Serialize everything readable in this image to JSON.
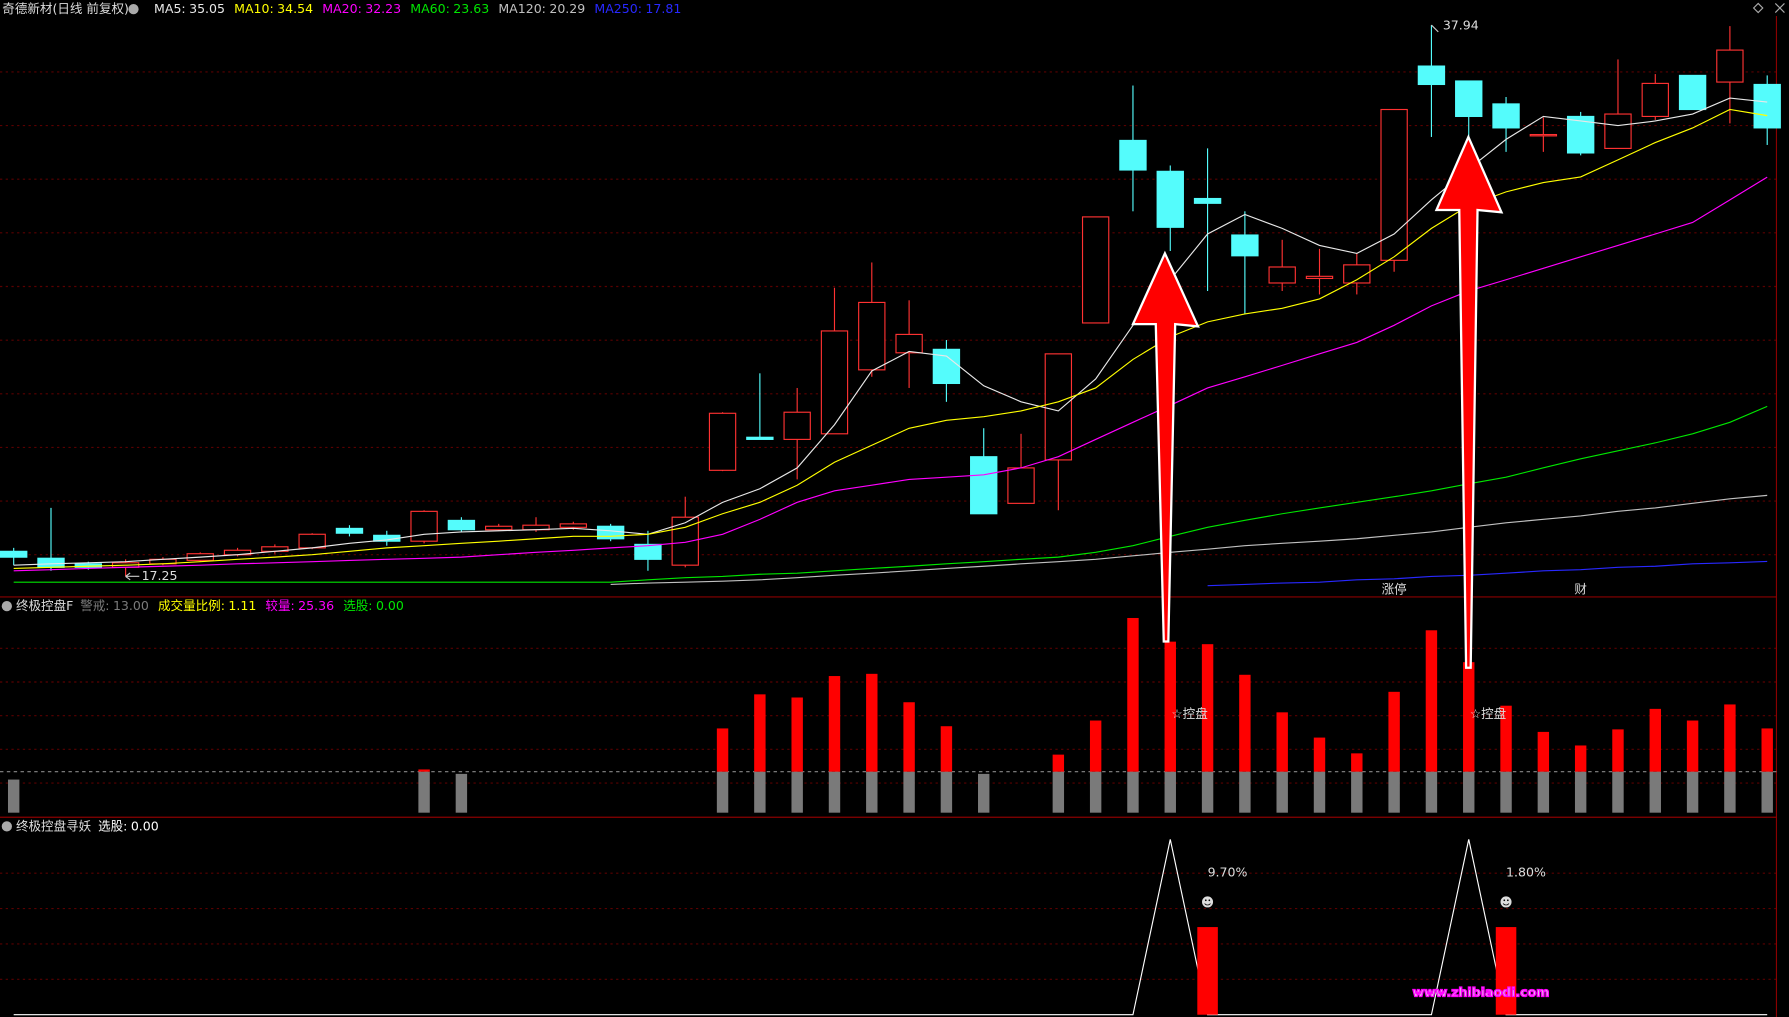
{
  "chart_data": [
    {
      "type": "candlestick",
      "title": "奇德新材(日线 前复权)",
      "open": [
        18.19,
        17.93,
        17.72,
        17.59,
        17.72,
        17.85,
        18.06,
        18.19,
        18.32,
        19.05,
        18.79,
        18.57,
        19.35,
        19.0,
        19.0,
        19.09,
        19.13,
        18.45,
        17.67,
        21.23,
        22.47,
        22.39,
        22.6,
        25.0,
        25.64,
        25.77,
        21.74,
        19.99,
        21.62,
        26.76,
        33.61,
        32.45,
        31.43,
        30.06,
        28.26,
        28.43,
        28.26,
        29.11,
        36.4,
        35.84,
        34.98,
        33.78,
        34.51,
        33.31,
        34.51,
        36.05,
        35.8,
        35.71
      ],
      "high": [
        18.32,
        19.82,
        17.8,
        17.89,
        17.97,
        18.15,
        18.32,
        18.45,
        18.87,
        19.17,
        18.96,
        19.73,
        19.47,
        19.22,
        19.47,
        19.3,
        19.22,
        18.96,
        20.24,
        23.41,
        24.87,
        24.32,
        28.08,
        29.03,
        27.61,
        26.12,
        22.81,
        22.6,
        25.6,
        30.74,
        35.67,
        32.67,
        33.31,
        30.95,
        29.88,
        29.54,
        29.37,
        34.77,
        37.94,
        35.84,
        35.24,
        34.47,
        34.68,
        36.65,
        36.1,
        36.05,
        37.9,
        36.05
      ],
      "low": [
        17.67,
        17.46,
        17.5,
        17.25,
        17.67,
        17.8,
        18.0,
        18.1,
        18.27,
        18.75,
        18.4,
        18.49,
        18.92,
        18.96,
        18.92,
        19.0,
        18.57,
        17.46,
        17.59,
        21.2,
        22.39,
        20.89,
        22.6,
        24.74,
        24.32,
        23.8,
        19.6,
        19.99,
        19.73,
        26.76,
        30.95,
        29.46,
        27.96,
        27.1,
        27.96,
        27.83,
        27.83,
        28.68,
        33.74,
        33.74,
        33.18,
        33.18,
        33.05,
        33.31,
        34.38,
        34.77,
        34.25,
        33.44
      ],
      "close": [
        17.97,
        17.59,
        17.59,
        17.76,
        17.89,
        18.1,
        18.23,
        18.36,
        18.83,
        18.87,
        18.57,
        19.69,
        19.0,
        19.13,
        19.17,
        19.22,
        18.66,
        17.89,
        19.47,
        23.37,
        22.39,
        23.41,
        26.46,
        27.53,
        26.33,
        24.49,
        19.6,
        21.32,
        25.6,
        30.74,
        32.5,
        30.35,
        31.25,
        29.28,
        28.86,
        28.51,
        28.94,
        34.77,
        35.71,
        34.51,
        34.08,
        33.83,
        33.14,
        34.6,
        35.75,
        34.77,
        37.0,
        34.08
      ],
      "up_color": "#ff3232",
      "down_color": "#54fcfc",
      "ylim": [
        16.52,
        38.28
      ],
      "series": [
        {
          "name": "MA5:",
          "color": "#e8e8e8",
          "values": [
            17.67,
            17.72,
            17.76,
            17.8,
            17.89,
            17.97,
            18.06,
            18.19,
            18.32,
            18.49,
            18.62,
            18.83,
            18.92,
            18.96,
            19.0,
            19.05,
            18.96,
            18.83,
            19.26,
            20.03,
            20.54,
            21.32,
            22.94,
            24.96,
            25.69,
            25.52,
            24.4,
            23.8,
            23.46,
            24.66,
            26.67,
            28.38,
            30.1,
            30.83,
            30.31,
            29.67,
            29.37,
            30.1,
            31.38,
            32.54,
            33.65,
            34.51,
            34.34,
            34.17,
            34.34,
            34.6,
            35.2,
            35.05
          ]
        },
        {
          "name": "MA10:",
          "color": "#ffff00",
          "values": [
            17.55,
            17.59,
            17.63,
            17.67,
            17.72,
            17.8,
            17.89,
            17.97,
            18.06,
            18.19,
            18.32,
            18.4,
            18.49,
            18.57,
            18.66,
            18.75,
            18.75,
            18.83,
            19.09,
            19.6,
            20.03,
            20.67,
            21.53,
            22.17,
            22.81,
            23.11,
            23.24,
            23.46,
            23.8,
            24.32,
            25.39,
            26.24,
            26.8,
            27.1,
            27.31,
            27.66,
            28.38,
            29.24,
            30.31,
            31.17,
            31.68,
            32.03,
            32.24,
            32.88,
            33.53,
            34.08,
            34.77,
            34.54
          ]
        },
        {
          "name": "MA20:",
          "color": "#ff00ff",
          "values": [
            17.46,
            17.5,
            17.55,
            17.59,
            17.63,
            17.67,
            17.72,
            17.76,
            17.8,
            17.85,
            17.89,
            17.93,
            17.97,
            18.06,
            18.15,
            18.23,
            18.32,
            18.4,
            18.53,
            18.83,
            19.39,
            20.03,
            20.46,
            20.67,
            20.89,
            20.97,
            21.06,
            21.32,
            21.74,
            22.39,
            23.03,
            23.67,
            24.32,
            24.74,
            25.17,
            25.6,
            26.03,
            26.67,
            27.4,
            27.96,
            28.38,
            28.81,
            29.24,
            29.67,
            30.1,
            30.53,
            31.38,
            32.23
          ]
        },
        {
          "name": "MA60:",
          "color": "#00e600",
          "values": [
            17.03,
            17.03,
            17.03,
            17.03,
            17.03,
            17.03,
            17.03,
            17.03,
            17.03,
            17.03,
            17.03,
            17.03,
            17.03,
            17.03,
            17.03,
            17.03,
            17.03,
            17.12,
            17.2,
            17.25,
            17.33,
            17.37,
            17.46,
            17.55,
            17.63,
            17.72,
            17.8,
            17.89,
            17.97,
            18.15,
            18.4,
            18.75,
            19.09,
            19.35,
            19.6,
            19.82,
            20.03,
            20.24,
            20.46,
            20.72,
            20.97,
            21.32,
            21.66,
            21.96,
            22.26,
            22.6,
            23.03,
            23.63
          ]
        },
        {
          "name": "MA120:",
          "color": "#c0c0c0",
          "values": [
            null,
            null,
            null,
            null,
            null,
            null,
            null,
            null,
            null,
            null,
            null,
            null,
            null,
            null,
            null,
            null,
            16.95,
            17.0,
            17.03,
            17.07,
            17.12,
            17.2,
            17.29,
            17.37,
            17.46,
            17.55,
            17.63,
            17.72,
            17.8,
            17.89,
            18.02,
            18.15,
            18.27,
            18.4,
            18.49,
            18.57,
            18.66,
            18.79,
            18.92,
            19.09,
            19.26,
            19.39,
            19.52,
            19.69,
            19.82,
            19.99,
            20.16,
            20.29
          ]
        },
        {
          "name": "MA250:",
          "color": "#2828ff",
          "values": [
            null,
            null,
            null,
            null,
            null,
            null,
            null,
            null,
            null,
            null,
            null,
            null,
            null,
            null,
            null,
            null,
            null,
            null,
            null,
            null,
            null,
            null,
            null,
            null,
            null,
            null,
            null,
            null,
            null,
            null,
            null,
            null,
            16.9,
            16.95,
            17.0,
            17.03,
            17.12,
            17.16,
            17.25,
            17.29,
            17.37,
            17.46,
            17.5,
            17.59,
            17.63,
            17.72,
            17.76,
            17.81
          ]
        }
      ],
      "annotations": [
        null,
        null,
        null,
        null,
        null,
        null,
        null,
        null,
        null,
        null,
        null,
        null,
        null,
        null,
        null,
        null,
        null,
        null,
        null,
        null,
        null,
        null,
        null,
        null,
        null,
        null,
        null,
        null,
        null,
        null,
        null,
        null,
        null,
        null,
        null,
        null,
        null,
        "涨停",
        null,
        null,
        null,
        null,
        "财",
        null,
        null,
        null,
        null,
        null
      ]
    },
    {
      "type": "bar",
      "title": "终极控盘F",
      "indicators": [
        {
          "name": "警戒:",
          "value": 13,
          "label": "13.00",
          "color": "#7a7a7a"
        },
        {
          "name": "成交量比例:",
          "value": 1.11,
          "color": "#ffff00"
        },
        {
          "name": "较量:",
          "value": 25.36,
          "color": "#ff00ff"
        },
        {
          "name": "选股:",
          "value": 0,
          "label": "0.00",
          "color": "#00e600"
        }
      ],
      "values": [
        10.5,
        null,
        null,
        null,
        null,
        null,
        null,
        null,
        null,
        null,
        null,
        13.7,
        12.3,
        null,
        null,
        null,
        null,
        null,
        null,
        26.7,
        37.5,
        36.5,
        43.3,
        44,
        35,
        27.4,
        12.3,
        null,
        18.4,
        29.2,
        61.7,
        54.2,
        53.4,
        43.7,
        31.8,
        23.8,
        18.8,
        38.3,
        57.8,
        47.7,
        33.9,
        25.6,
        21.3,
        26.4,
        32.9,
        29.2,
        34.3,
        26.7
      ],
      "colors": [
        "#7a7a7a",
        "#ff0000"
      ],
      "ylim": [
        0,
        68
      ],
      "signal_text": [
        null,
        null,
        null,
        null,
        null,
        null,
        null,
        null,
        null,
        null,
        null,
        null,
        null,
        null,
        null,
        null,
        null,
        null,
        null,
        null,
        null,
        null,
        null,
        null,
        null,
        null,
        null,
        null,
        null,
        null,
        null,
        "☆控盘",
        null,
        null,
        null,
        null,
        null,
        null,
        null,
        "☆控盘",
        null,
        null,
        null,
        null,
        null,
        null,
        null,
        null
      ]
    },
    {
      "type": "line",
      "title": "终极控盘寻妖",
      "indicators": [
        {
          "name": "选股:",
          "value": 0,
          "label": "0.00",
          "color": "#ffffff"
        }
      ],
      "values": [
        0,
        0,
        0,
        0,
        0,
        0,
        0,
        0,
        0,
        0,
        0,
        0,
        0,
        0,
        0,
        0,
        0,
        0,
        0,
        0,
        0,
        0,
        0,
        0,
        0,
        0,
        0,
        0,
        0,
        0,
        0,
        1,
        0,
        0,
        0,
        0,
        0,
        0,
        0,
        1,
        0,
        0,
        0,
        0,
        0,
        0,
        0,
        0
      ],
      "color": "#ffffff",
      "bars": [
        null,
        null,
        null,
        null,
        null,
        null,
        null,
        null,
        null,
        null,
        null,
        null,
        null,
        null,
        null,
        null,
        null,
        null,
        null,
        null,
        null,
        null,
        null,
        null,
        null,
        null,
        null,
        null,
        null,
        null,
        null,
        null,
        0.5,
        null,
        null,
        null,
        null,
        null,
        null,
        null,
        0.5,
        null,
        null,
        null,
        null,
        null,
        null,
        null
      ],
      "bar_color": "#ff0000",
      "pct_labels": [
        null,
        null,
        null,
        null,
        null,
        null,
        null,
        null,
        null,
        null,
        null,
        null,
        null,
        null,
        null,
        null,
        null,
        null,
        null,
        null,
        null,
        null,
        null,
        null,
        null,
        null,
        null,
        null,
        null,
        null,
        null,
        null,
        "9.70%",
        null,
        null,
        null,
        null,
        null,
        null,
        null,
        "1.80%",
        null,
        null,
        null,
        null,
        null,
        null,
        null
      ],
      "marker": "☻",
      "ylim": [
        0,
        1.12
      ],
      "watermark": "www.zhibiaodi.com"
    }
  ]
}
